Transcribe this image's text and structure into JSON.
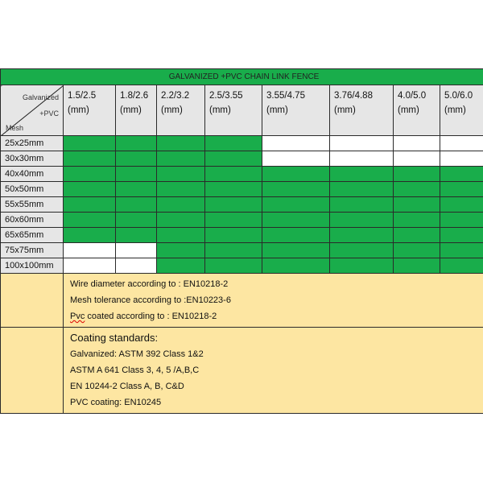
{
  "table": {
    "title": "GALVANIZED +PVC CHAIN LINK FENCE",
    "corner": {
      "top": "Galvanized",
      "middle": "+PVC",
      "bottom": "Mesh"
    },
    "columns": [
      {
        "size": "1.5/2.5",
        "unit": "(mm)"
      },
      {
        "size": "1.8/2.6",
        "unit": "(mm)"
      },
      {
        "size": "2.2/3.2",
        "unit": "(mm)"
      },
      {
        "size": "2.5/3.55",
        "unit": "(mm)"
      },
      {
        "size": "3.55/4.75",
        "unit": "(mm)"
      },
      {
        "size": "3.76/4.88",
        "unit": "(mm)"
      },
      {
        "size": "4.0/5.0",
        "unit": "(mm)"
      },
      {
        "size": "5.0/6.0",
        "unit": "(mm)"
      }
    ],
    "rows": [
      {
        "mesh": "25x25mm",
        "available": [
          1,
          1,
          1,
          1,
          0,
          0,
          0,
          0
        ]
      },
      {
        "mesh": "30x30mm",
        "available": [
          1,
          1,
          1,
          1,
          0,
          0,
          0,
          0
        ]
      },
      {
        "mesh": "40x40mm",
        "available": [
          1,
          1,
          1,
          1,
          1,
          1,
          1,
          1
        ]
      },
      {
        "mesh": "50x50mm",
        "available": [
          1,
          1,
          1,
          1,
          1,
          1,
          1,
          1
        ]
      },
      {
        "mesh": "55x55mm",
        "available": [
          1,
          1,
          1,
          1,
          1,
          1,
          1,
          1
        ]
      },
      {
        "mesh": "60x60mm",
        "available": [
          1,
          1,
          1,
          1,
          1,
          1,
          1,
          1
        ]
      },
      {
        "mesh": "65x65mm",
        "available": [
          1,
          1,
          1,
          1,
          1,
          1,
          1,
          1
        ]
      },
      {
        "mesh": "75x75mm",
        "available": [
          0,
          0,
          1,
          1,
          1,
          1,
          1,
          1
        ]
      },
      {
        "mesh": "100x100mm",
        "available": [
          0,
          0,
          1,
          1,
          1,
          1,
          1,
          1
        ]
      }
    ],
    "colors": {
      "available": "#19ad4b",
      "unavailable": "#ffffff",
      "header": "#e6e6e6",
      "notes": "#fde6a2"
    }
  },
  "notes": {
    "standards": [
      "Wire diameter according to : EN10218-2",
      "Mesh tolerance according to :EN10223-6"
    ],
    "pvc_word": "Pvc",
    "pvc_rest": " coated according to : EN10218-2",
    "coating_title": "Coating standards:",
    "coating": [
      "Galvanized: ASTM 392 Class 1&2",
      "ASTM A 641 Class 3, 4, 5 /A,B,C",
      "EN 10244-2 Class A, B, C&D",
      "PVC coating: EN10245"
    ]
  }
}
